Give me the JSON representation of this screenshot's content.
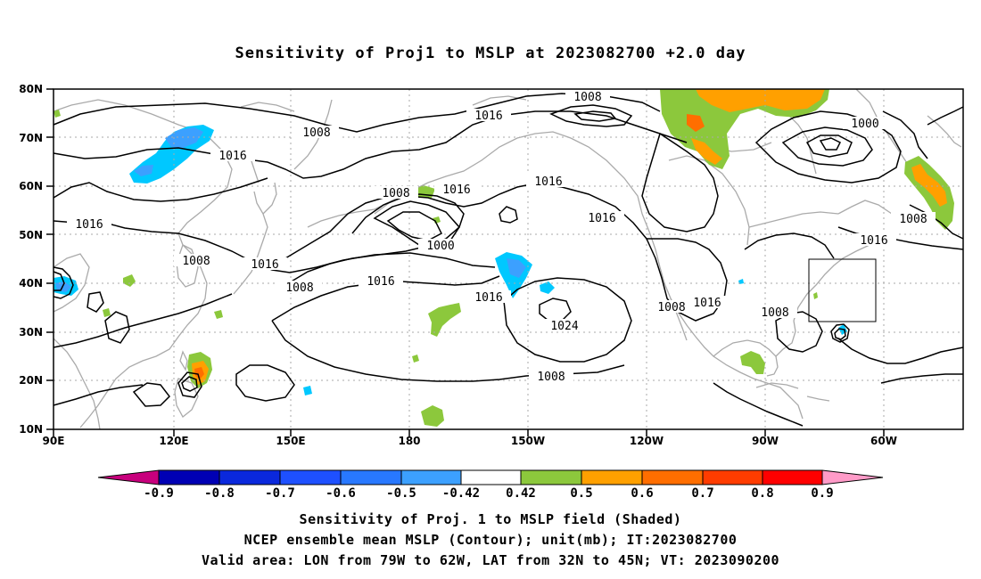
{
  "title": "Sensitivity of Proj1 to MSLP at 2023082700 +2.0 day",
  "axes": {
    "lat_labels": [
      "80N",
      "70N",
      "60N",
      "50N",
      "40N",
      "30N",
      "20N",
      "10N"
    ],
    "lon_labels": [
      "90E",
      "120E",
      "150E",
      "180",
      "150W",
      "120W",
      "90W",
      "60W"
    ]
  },
  "contour_labels": {
    "l1": "1008",
    "l2": "1016",
    "l3": "1000",
    "l4": "1008",
    "l5": "1016",
    "l6": "1016",
    "l7": "1008",
    "l8": "1016",
    "l9": "1008",
    "l10": "1016",
    "l11": "1016",
    "l12": "1008",
    "l13": "1008",
    "l14": "1000",
    "l15": "1016",
    "l16": "1016",
    "l17": "1024",
    "l18": "1016",
    "l19": "1008",
    "l20": "1016",
    "l21": "1008",
    "l22": "1016",
    "l23": "1008"
  },
  "colorbar": {
    "labels": [
      "-0.9",
      "-0.8",
      "-0.7",
      "-0.6",
      "-0.5",
      "-0.42",
      "0.42",
      "0.5",
      "0.6",
      "0.7",
      "0.8",
      "0.9"
    ],
    "colors": [
      "#c8007d",
      "#0000b4",
      "#0a28dc",
      "#1e50ff",
      "#2878ff",
      "#3ca0ff",
      "#00c8ff",
      "#ffffff",
      "#8cc83c",
      "#ffa000",
      "#ff6e00",
      "#ff3c00",
      "#ff0000",
      "#ff9bc8"
    ]
  },
  "captions": {
    "line1": "Sensitivity of Proj. 1 to MSLP field (Shaded)",
    "line2": "NCEP ensemble mean MSLP (Contour); unit(mb); IT:2023082700",
    "line3": "Valid area: LON from 79W to 62W, LAT from 32N to 45N; VT: 2023090200"
  }
}
